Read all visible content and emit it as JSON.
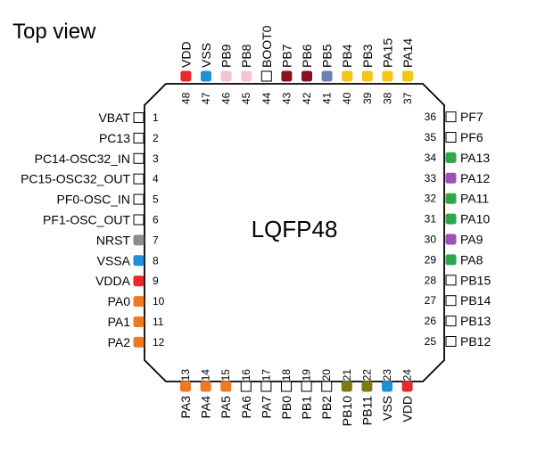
{
  "title": "Top view",
  "package": "LQFP48",
  "colors": {
    "red": "#e8282b",
    "blue": "#1e8fd8",
    "pink": "#f5c4d4",
    "maroon": "#8b1020",
    "slate": "#6b80b0",
    "yellow": "#f5c518",
    "orange": "#f07820",
    "olive": "#7d7a10",
    "green": "#2fa84a",
    "purple": "#a04fb8",
    "gray": "#8c8c8c"
  },
  "pins": {
    "left": [
      {
        "num": "1",
        "label": "VBAT",
        "color": ""
      },
      {
        "num": "2",
        "label": "PC13",
        "color": ""
      },
      {
        "num": "3",
        "label": "PC14-OSC32_IN",
        "color": ""
      },
      {
        "num": "4",
        "label": "PC15-OSC32_OUT",
        "color": ""
      },
      {
        "num": "5",
        "label": "PF0-OSC_IN",
        "color": ""
      },
      {
        "num": "6",
        "label": "PF1-OSC_OUT",
        "color": ""
      },
      {
        "num": "7",
        "label": "NRST",
        "color": "gray"
      },
      {
        "num": "8",
        "label": "VSSA",
        "color": "blue"
      },
      {
        "num": "9",
        "label": "VDDA",
        "color": "red"
      },
      {
        "num": "10",
        "label": "PA0",
        "color": "orange"
      },
      {
        "num": "11",
        "label": "PA1",
        "color": "orange"
      },
      {
        "num": "12",
        "label": "PA2",
        "color": "orange"
      }
    ],
    "bottom": [
      {
        "num": "13",
        "label": "PA3",
        "color": "orange"
      },
      {
        "num": "14",
        "label": "PA4",
        "color": "orange"
      },
      {
        "num": "15",
        "label": "PA5",
        "color": "orange"
      },
      {
        "num": "16",
        "label": "PA6",
        "color": ""
      },
      {
        "num": "17",
        "label": "PA7",
        "color": ""
      },
      {
        "num": "18",
        "label": "PB0",
        "color": ""
      },
      {
        "num": "19",
        "label": "PB1",
        "color": ""
      },
      {
        "num": "20",
        "label": "PB2",
        "color": ""
      },
      {
        "num": "21",
        "label": "PB10",
        "color": "olive"
      },
      {
        "num": "22",
        "label": "PB11",
        "color": "olive"
      },
      {
        "num": "23",
        "label": "VSS",
        "color": "blue"
      },
      {
        "num": "24",
        "label": "VDD",
        "color": "red"
      }
    ],
    "right": [
      {
        "num": "25",
        "label": "PB12",
        "color": ""
      },
      {
        "num": "26",
        "label": "PB13",
        "color": ""
      },
      {
        "num": "27",
        "label": "PB14",
        "color": ""
      },
      {
        "num": "28",
        "label": "PB15",
        "color": ""
      },
      {
        "num": "29",
        "label": "PA8",
        "color": "green"
      },
      {
        "num": "30",
        "label": "PA9",
        "color": "purple"
      },
      {
        "num": "31",
        "label": "PA10",
        "color": "green"
      },
      {
        "num": "32",
        "label": "PA11",
        "color": "green"
      },
      {
        "num": "33",
        "label": "PA12",
        "color": "purple"
      },
      {
        "num": "34",
        "label": "PA13",
        "color": "green"
      },
      {
        "num": "35",
        "label": "PF6",
        "color": ""
      },
      {
        "num": "36",
        "label": "PF7",
        "color": ""
      }
    ],
    "top": [
      {
        "num": "37",
        "label": "PA14",
        "color": "yellow"
      },
      {
        "num": "38",
        "label": "PA15",
        "color": "yellow"
      },
      {
        "num": "39",
        "label": "PB3",
        "color": "yellow"
      },
      {
        "num": "40",
        "label": "PB4",
        "color": "yellow"
      },
      {
        "num": "41",
        "label": "PB5",
        "color": "slate"
      },
      {
        "num": "42",
        "label": "PB6",
        "color": "maroon"
      },
      {
        "num": "43",
        "label": "PB7",
        "color": "maroon"
      },
      {
        "num": "44",
        "label": "BOOT0",
        "color": ""
      },
      {
        "num": "45",
        "label": "PB8",
        "color": "pink"
      },
      {
        "num": "46",
        "label": "PB9",
        "color": "pink"
      },
      {
        "num": "47",
        "label": "VSS",
        "color": "blue"
      },
      {
        "num": "48",
        "label": "VDD",
        "color": "red"
      }
    ]
  }
}
